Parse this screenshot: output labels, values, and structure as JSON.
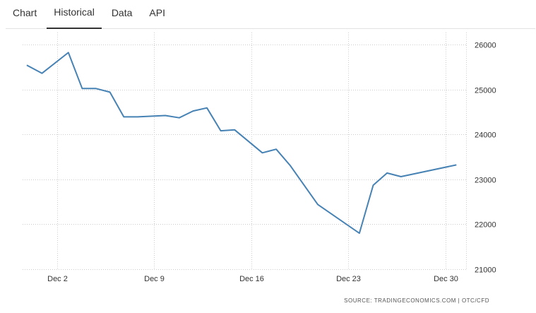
{
  "tabs": [
    {
      "label": "Chart",
      "active": false
    },
    {
      "label": "Historical",
      "active": true
    },
    {
      "label": "Data",
      "active": false
    },
    {
      "label": "API",
      "active": false
    }
  ],
  "source_text": "SOURCE: TRADINGECONOMICS.COM | OTC/CFD",
  "colors": {
    "line": "#4682b4",
    "grid": "#cccccc",
    "text": "#333333"
  },
  "chart_data": {
    "type": "line",
    "x_tick_labels": [
      "Dec 2",
      "Dec 9",
      "Dec 16",
      "Dec 23",
      "Dec 30"
    ],
    "x_tick_days": [
      2,
      9,
      16,
      23,
      30
    ],
    "y_tick_labels": [
      "26000",
      "25000",
      "24000",
      "23000",
      "22000",
      "21000"
    ],
    "ylim": [
      21000,
      26000
    ],
    "xlim": [
      -0.5,
      31.5
    ],
    "grid": true,
    "series": [
      {
        "x": [
          -0.2,
          0.9,
          2.8,
          3.8,
          4.8,
          5.8,
          6.8,
          7.8,
          9.8,
          10.8,
          11.8,
          12.8,
          13.8,
          14.8,
          16.8,
          17.8,
          18.8,
          20.8,
          23.8,
          24.8,
          25.8,
          26.8,
          30.8
        ],
        "y": [
          25540,
          25360,
          25820,
          25020,
          25020,
          24940,
          24390,
          24390,
          24420,
          24370,
          24520,
          24590,
          24080,
          24100,
          23590,
          23670,
          23310,
          22440,
          21800,
          22870,
          23140,
          23060,
          23320
        ]
      }
    ]
  }
}
